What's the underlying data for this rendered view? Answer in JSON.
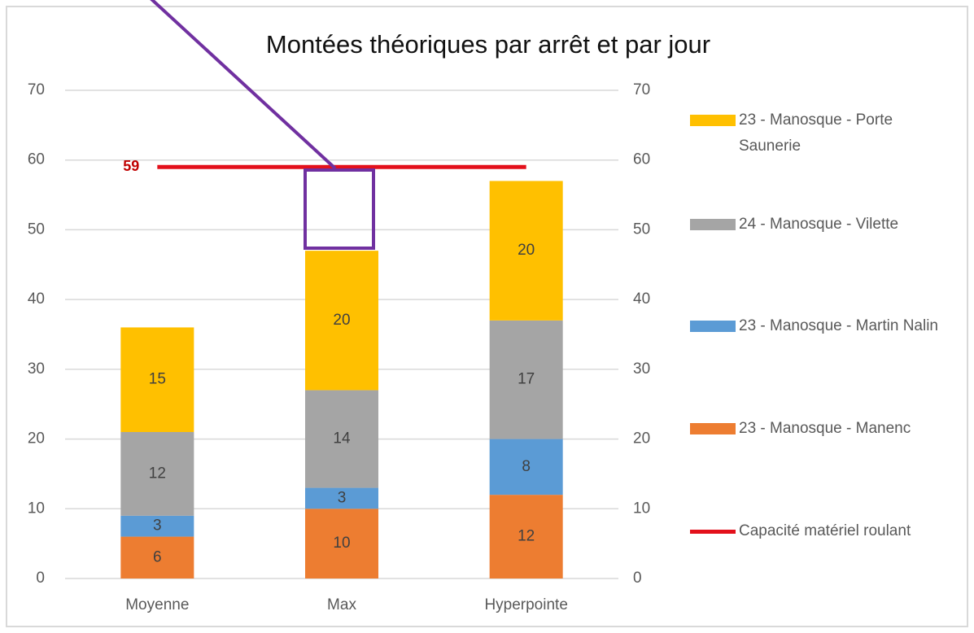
{
  "chart_data": {
    "type": "bar",
    "stacked": true,
    "title": "Montées théoriques par arrêt et par jour",
    "categories": [
      "Moyenne",
      "Max",
      "Hyperpointe"
    ],
    "series": [
      {
        "name": "23 - Manosque - Manenc",
        "color": "#ED7D31",
        "values": [
          6,
          10,
          12
        ]
      },
      {
        "name": "23 - Manosque - Martin Nalin",
        "color": "#5B9BD5",
        "values": [
          3,
          3,
          8
        ]
      },
      {
        "name": "24 - Manosque - Vilette",
        "color": "#A5A5A5",
        "values": [
          12,
          14,
          17
        ]
      },
      {
        "name": "23 - Manosque - Porte Saunerie",
        "color": "#FFC000",
        "values": [
          15,
          20,
          20
        ]
      },
      {
        "name": "Capacité matériel roulant",
        "type": "line",
        "axis": "y2",
        "color": "#E3101B",
        "values": [
          59,
          59,
          59
        ]
      }
    ],
    "ylim": [
      0,
      70
    ],
    "yticks": [
      0,
      10,
      20,
      30,
      40,
      50,
      60,
      70
    ],
    "y2lim": [
      0,
      70
    ],
    "y2ticks": [
      0,
      10,
      20,
      30,
      40,
      50,
      60,
      70
    ],
    "grid": true,
    "legend": "right"
  }
}
